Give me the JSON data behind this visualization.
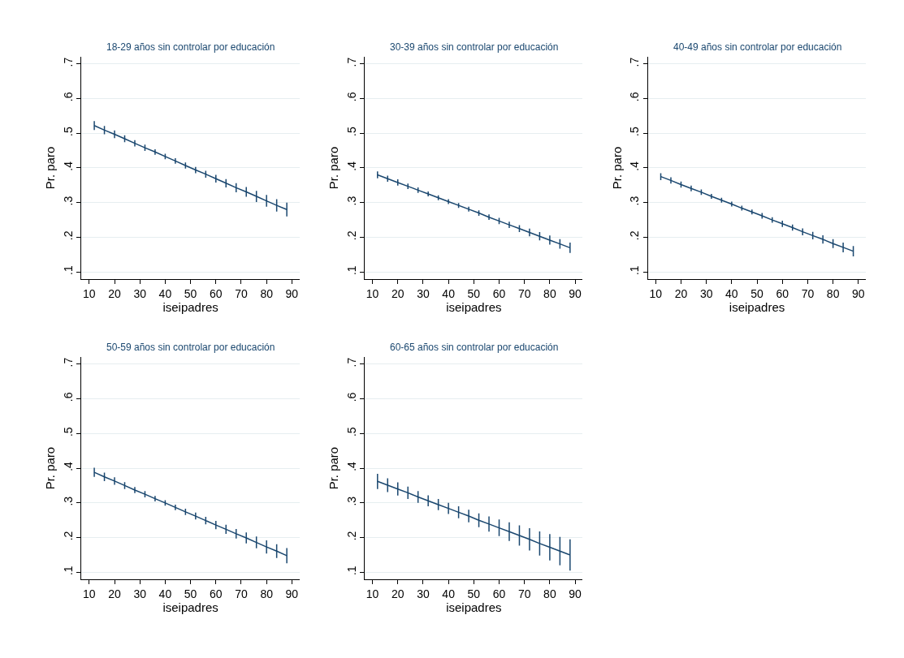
{
  "chart_data": [
    {
      "type": "line",
      "title": "18-29 años sin controlar por educación",
      "xlabel": "iseipadres",
      "ylabel": "Pr. paro",
      "x": [
        12,
        16,
        20,
        24,
        28,
        32,
        36,
        40,
        44,
        48,
        52,
        56,
        60,
        64,
        68,
        72,
        76,
        80,
        84,
        88
      ],
      "series": [
        {
          "color": "#1a476f",
          "values": [
            0.522,
            0.509,
            0.497,
            0.484,
            0.471,
            0.458,
            0.446,
            0.433,
            0.42,
            0.407,
            0.394,
            0.382,
            0.369,
            0.356,
            0.343,
            0.331,
            0.318,
            0.305,
            0.292,
            0.28
          ],
          "errors": [
            0.013,
            0.012,
            0.011,
            0.01,
            0.009,
            0.009,
            0.008,
            0.008,
            0.008,
            0.009,
            0.009,
            0.01,
            0.011,
            0.012,
            0.013,
            0.014,
            0.016,
            0.017,
            0.018,
            0.02
          ]
        }
      ],
      "xlim": [
        7,
        93
      ],
      "xticks": [
        10,
        20,
        30,
        40,
        50,
        60,
        70,
        80,
        90
      ],
      "ylim": [
        0.08,
        0.72
      ],
      "yticks": [
        {
          "value": 0.1,
          "label": ".1"
        },
        {
          "value": 0.2,
          "label": ".2"
        },
        {
          "value": 0.3,
          "label": ".3"
        },
        {
          "value": 0.4,
          "label": ".4"
        },
        {
          "value": 0.5,
          "label": ".5"
        },
        {
          "value": 0.6,
          "label": ".6"
        },
        {
          "value": 0.7,
          "label": ".7"
        }
      ],
      "grid": "y",
      "line_style": "solid"
    },
    {
      "type": "line",
      "title": "30-39 años sin controlar por educación",
      "xlabel": "iseipadres",
      "ylabel": "Pr. paro",
      "x": [
        12,
        16,
        20,
        24,
        28,
        32,
        36,
        40,
        44,
        48,
        52,
        56,
        60,
        64,
        68,
        72,
        76,
        80,
        84,
        88
      ],
      "series": [
        {
          "color": "#1a476f",
          "values": [
            0.38,
            0.369,
            0.358,
            0.347,
            0.336,
            0.325,
            0.314,
            0.303,
            0.292,
            0.281,
            0.27,
            0.258,
            0.247,
            0.236,
            0.225,
            0.214,
            0.203,
            0.192,
            0.181,
            0.17
          ],
          "errors": [
            0.01,
            0.009,
            0.009,
            0.008,
            0.008,
            0.007,
            0.007,
            0.007,
            0.007,
            0.007,
            0.008,
            0.008,
            0.009,
            0.009,
            0.01,
            0.011,
            0.012,
            0.013,
            0.014,
            0.015
          ]
        }
      ],
      "xlim": [
        7,
        93
      ],
      "xticks": [
        10,
        20,
        30,
        40,
        50,
        60,
        70,
        80,
        90
      ],
      "ylim": [
        0.08,
        0.72
      ],
      "yticks": [
        {
          "value": 0.1,
          "label": ".1"
        },
        {
          "value": 0.2,
          "label": ".2"
        },
        {
          "value": 0.3,
          "label": ".3"
        },
        {
          "value": 0.4,
          "label": ".4"
        },
        {
          "value": 0.5,
          "label": ".5"
        },
        {
          "value": 0.6,
          "label": ".6"
        },
        {
          "value": 0.7,
          "label": ".7"
        }
      ],
      "grid": "y",
      "line_style": "solid"
    },
    {
      "type": "line",
      "title": "40-49 años sin controlar por educación",
      "xlabel": "iseipadres",
      "ylabel": "Pr. paro",
      "x": [
        12,
        16,
        20,
        24,
        28,
        32,
        36,
        40,
        44,
        48,
        52,
        56,
        60,
        64,
        68,
        72,
        76,
        80,
        84,
        88
      ],
      "series": [
        {
          "color": "#1a476f",
          "values": [
            0.375,
            0.364,
            0.352,
            0.341,
            0.33,
            0.318,
            0.307,
            0.296,
            0.284,
            0.273,
            0.262,
            0.25,
            0.239,
            0.228,
            0.216,
            0.205,
            0.194,
            0.182,
            0.171,
            0.16
          ],
          "errors": [
            0.01,
            0.009,
            0.009,
            0.008,
            0.008,
            0.007,
            0.007,
            0.007,
            0.007,
            0.007,
            0.008,
            0.008,
            0.009,
            0.009,
            0.01,
            0.011,
            0.012,
            0.013,
            0.014,
            0.015
          ]
        }
      ],
      "xlim": [
        7,
        93
      ],
      "xticks": [
        10,
        20,
        30,
        40,
        50,
        60,
        70,
        80,
        90
      ],
      "ylim": [
        0.08,
        0.72
      ],
      "yticks": [
        {
          "value": 0.1,
          "label": ".1"
        },
        {
          "value": 0.2,
          "label": ".2"
        },
        {
          "value": 0.3,
          "label": ".3"
        },
        {
          "value": 0.4,
          "label": ".4"
        },
        {
          "value": 0.5,
          "label": ".5"
        },
        {
          "value": 0.6,
          "label": ".6"
        },
        {
          "value": 0.7,
          "label": ".7"
        }
      ],
      "grid": "y",
      "line_style": "solid"
    },
    {
      "type": "line",
      "title": "50-59 años sin controlar por educación",
      "xlabel": "iseipadres",
      "ylabel": "Pr. paro",
      "x": [
        12,
        16,
        20,
        24,
        28,
        32,
        36,
        40,
        44,
        48,
        52,
        56,
        60,
        64,
        68,
        72,
        76,
        80,
        84,
        88
      ],
      "series": [
        {
          "color": "#1a476f",
          "values": [
            0.388,
            0.375,
            0.363,
            0.35,
            0.337,
            0.325,
            0.312,
            0.3,
            0.287,
            0.274,
            0.262,
            0.249,
            0.236,
            0.224,
            0.211,
            0.199,
            0.186,
            0.173,
            0.161,
            0.148
          ],
          "errors": [
            0.013,
            0.012,
            0.011,
            0.01,
            0.009,
            0.009,
            0.008,
            0.008,
            0.008,
            0.009,
            0.01,
            0.011,
            0.012,
            0.013,
            0.014,
            0.016,
            0.017,
            0.019,
            0.02,
            0.022
          ]
        }
      ],
      "xlim": [
        7,
        93
      ],
      "xticks": [
        10,
        20,
        30,
        40,
        50,
        60,
        70,
        80,
        90
      ],
      "ylim": [
        0.08,
        0.72
      ],
      "yticks": [
        {
          "value": 0.1,
          "label": ".1"
        },
        {
          "value": 0.2,
          "label": ".2"
        },
        {
          "value": 0.3,
          "label": ".3"
        },
        {
          "value": 0.4,
          "label": ".4"
        },
        {
          "value": 0.5,
          "label": ".5"
        },
        {
          "value": 0.6,
          "label": ".6"
        },
        {
          "value": 0.7,
          "label": ".7"
        }
      ],
      "grid": "y",
      "line_style": "solid"
    },
    {
      "type": "line",
      "title": "60-65 años sin controlar por educación",
      "xlabel": "iseipadres",
      "ylabel": "Pr. paro",
      "x": [
        12,
        16,
        20,
        24,
        28,
        32,
        36,
        40,
        44,
        48,
        52,
        56,
        60,
        64,
        68,
        72,
        76,
        80,
        84,
        88
      ],
      "series": [
        {
          "color": "#1a476f",
          "values": [
            0.362,
            0.351,
            0.34,
            0.329,
            0.317,
            0.306,
            0.295,
            0.284,
            0.273,
            0.262,
            0.25,
            0.239,
            0.228,
            0.217,
            0.206,
            0.195,
            0.183,
            0.172,
            0.161,
            0.15
          ],
          "errors": [
            0.022,
            0.02,
            0.019,
            0.018,
            0.017,
            0.016,
            0.016,
            0.016,
            0.017,
            0.018,
            0.02,
            0.022,
            0.024,
            0.027,
            0.029,
            0.032,
            0.035,
            0.038,
            0.041,
            0.045
          ]
        }
      ],
      "xlim": [
        7,
        93
      ],
      "xticks": [
        10,
        20,
        30,
        40,
        50,
        60,
        70,
        80,
        90
      ],
      "ylim": [
        0.08,
        0.72
      ],
      "yticks": [
        {
          "value": 0.1,
          "label": ".1"
        },
        {
          "value": 0.2,
          "label": ".2"
        },
        {
          "value": 0.3,
          "label": ".3"
        },
        {
          "value": 0.4,
          "label": ".4"
        },
        {
          "value": 0.5,
          "label": ".5"
        },
        {
          "value": 0.6,
          "label": ".6"
        },
        {
          "value": 0.7,
          "label": ".7"
        }
      ],
      "grid": "y",
      "line_style": "solid"
    }
  ]
}
